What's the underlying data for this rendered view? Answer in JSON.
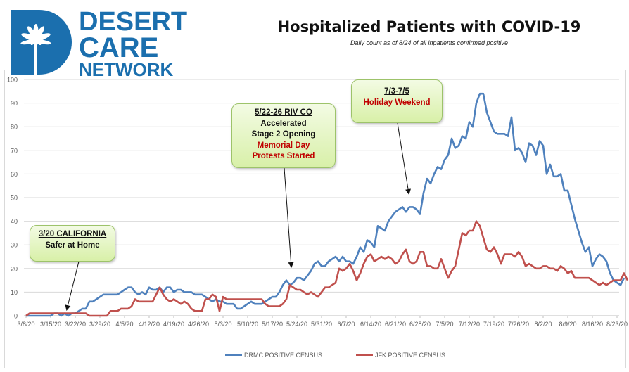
{
  "logo": {
    "line1": "DESERT",
    "line2": "CARE",
    "line3": "NETWORK",
    "icon": "palm-tree-icon",
    "brand_color": "#1b6fae"
  },
  "chart_data": {
    "type": "line",
    "title": "Hospitalized Patients with COVID-19",
    "subtitle": "Daily count as of 8/24 of all inpatients confirmed positive",
    "xlabel": "",
    "ylabel": "",
    "ylim": [
      0,
      100
    ],
    "yticks": [
      "0",
      "10",
      "20",
      "30",
      "40",
      "50",
      "60",
      "70",
      "80",
      "90",
      "100"
    ],
    "xticks": [
      "3/8/20",
      "3/15/20",
      "3/22/20",
      "3/29/20",
      "4/5/20",
      "4/12/20",
      "4/19/20",
      "4/26/20",
      "5/3/20",
      "5/10/20",
      "5/17/20",
      "5/24/20",
      "5/31/20",
      "6/7/20",
      "6/14/20",
      "6/21/20",
      "6/28/20",
      "7/5/20",
      "7/12/20",
      "7/19/20",
      "7/26/20",
      "8/2/20",
      "8/9/20",
      "8/16/20",
      "8/23/20"
    ],
    "grid": true,
    "legend_position": "bottom",
    "start_date": "3/8/20",
    "series": [
      {
        "name": "DRMC POSITIVE CENSUS",
        "color": "#4f81bd",
        "values": [
          0,
          0,
          0,
          0,
          0,
          0,
          0,
          0,
          1,
          1,
          0,
          1,
          0,
          1,
          1,
          2,
          3,
          3,
          6,
          6,
          7,
          8,
          9,
          9,
          9,
          9,
          9,
          10,
          11,
          12,
          12,
          10,
          9,
          10,
          9,
          12,
          11,
          11,
          12,
          10,
          12,
          12,
          10,
          11,
          11,
          10,
          10,
          10,
          9,
          9,
          9,
          8,
          7,
          6,
          7,
          6,
          6,
          5,
          5,
          5,
          3,
          3,
          4,
          5,
          6,
          5,
          5,
          5,
          6,
          7,
          8,
          8,
          10,
          13,
          15,
          13,
          14,
          16,
          16,
          15,
          17,
          19,
          22,
          23,
          21,
          21,
          23,
          24,
          25,
          23,
          25,
          23,
          23,
          22,
          25,
          29,
          27,
          32,
          31,
          29,
          38,
          37,
          36,
          40,
          42,
          44,
          45,
          46,
          44,
          46,
          46,
          45,
          43,
          52,
          58,
          56,
          60,
          63,
          62,
          66,
          68,
          75,
          71,
          72,
          76,
          75,
          82,
          80,
          90,
          94,
          94,
          86,
          82,
          78,
          77,
          77,
          77,
          76,
          84,
          70,
          71,
          69,
          65,
          73,
          72,
          68,
          74,
          72,
          60,
          64,
          59,
          59,
          60,
          53,
          53,
          47,
          41,
          36,
          31,
          27,
          29,
          21,
          24,
          26,
          25,
          23,
          18,
          15,
          14,
          13,
          16
        ]
      },
      {
        "name": "JFK POSITIVE CENSUS",
        "color": "#c0504d",
        "values": [
          0,
          1,
          1,
          1,
          1,
          1,
          1,
          1,
          1,
          1,
          1,
          1,
          1,
          1,
          1,
          1,
          1,
          1,
          0,
          0,
          0,
          0,
          0,
          0,
          2,
          2,
          2,
          3,
          3,
          3,
          4,
          7,
          6,
          6,
          6,
          6,
          6,
          9,
          12,
          9,
          7,
          6,
          7,
          6,
          5,
          6,
          5,
          3,
          2,
          2,
          2,
          7,
          7,
          9,
          8,
          2,
          8,
          7,
          7,
          7,
          7,
          7,
          7,
          7,
          7,
          7,
          7,
          7,
          5,
          4,
          4,
          4,
          4,
          5,
          7,
          13,
          12,
          11,
          11,
          10,
          9,
          10,
          9,
          8,
          10,
          12,
          12,
          13,
          14,
          20,
          19,
          20,
          22,
          19,
          15,
          18,
          22,
          25,
          26,
          23,
          24,
          25,
          24,
          25,
          24,
          22,
          23,
          26,
          28,
          23,
          22,
          23,
          27,
          27,
          21,
          21,
          20,
          20,
          24,
          20,
          16,
          19,
          21,
          28,
          35,
          34,
          36,
          36,
          40,
          38,
          33,
          28,
          27,
          29,
          26,
          22,
          26,
          26,
          26,
          25,
          27,
          25,
          21,
          22,
          21,
          20,
          20,
          21,
          21,
          20,
          20,
          19,
          21,
          20,
          18,
          19,
          16,
          16,
          16,
          16,
          16,
          15,
          14,
          13,
          14,
          13,
          14,
          15,
          15,
          15,
          18,
          15
        ]
      }
    ],
    "annotations": [
      {
        "lines": [
          "3/20 CALIFORNIA",
          "Safer at Home"
        ],
        "red_lines": [],
        "target_date": "3/21/20"
      },
      {
        "lines": [
          "5/22-26  RIV CO",
          "Accelerated",
          "Stage 2 Opening"
        ],
        "red_lines": [
          "Memorial Day",
          "Protests Started"
        ],
        "target_date": "5/22/20"
      },
      {
        "lines": [
          "7/3-7/5"
        ],
        "red_lines": [
          "Holiday Weekend"
        ],
        "target_date": "7/3/20"
      }
    ]
  }
}
